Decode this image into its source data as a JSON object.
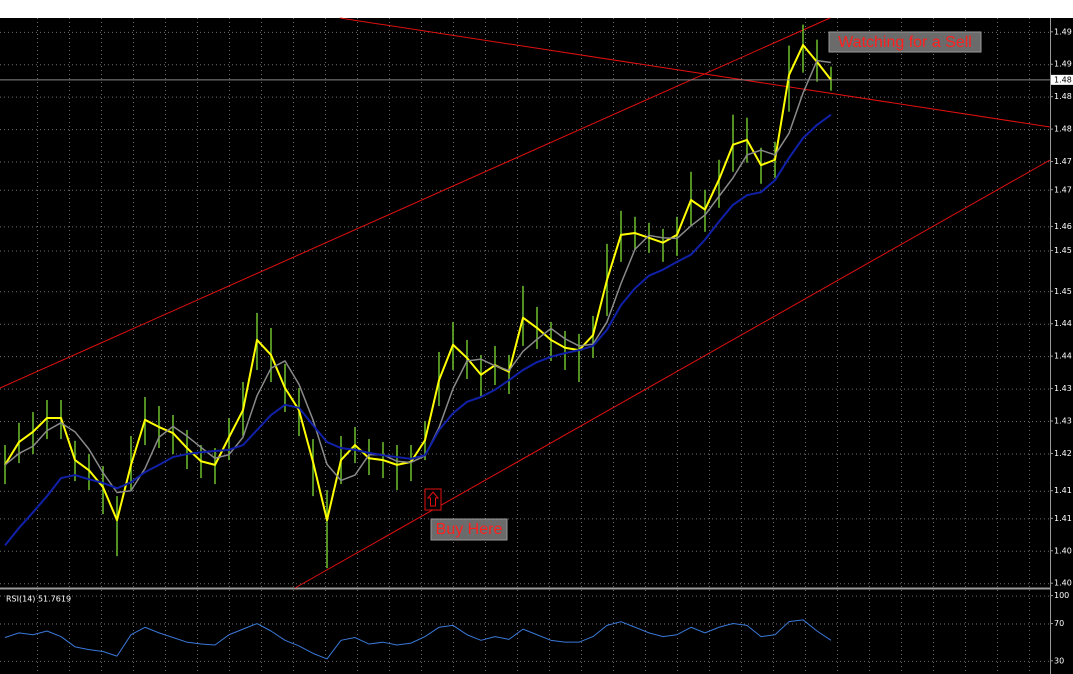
{
  "chart_data": [
    {
      "type": "line",
      "ylim": [
        1.3987,
        1.4936
      ],
      "yticks": [
        {
          "value": 1.3995,
          "label": "1.40"
        },
        {
          "value": 1.4049,
          "label": "1.40"
        },
        {
          "value": 1.4103,
          "label": "1.41"
        },
        {
          "value": 1.4149,
          "label": "1.41"
        },
        {
          "value": 1.4211,
          "label": "1.42"
        },
        {
          "value": 1.4265,
          "label": "1.43"
        },
        {
          "value": 1.4319,
          "label": "1.43"
        },
        {
          "value": 1.4373,
          "label": "1.44"
        },
        {
          "value": 1.4427,
          "label": "1.44"
        },
        {
          "value": 1.4481,
          "label": "1.45"
        },
        {
          "value": 1.4549,
          "label": "1.45"
        },
        {
          "value": 1.4589,
          "label": "1.46"
        },
        {
          "value": 1.465,
          "label": "1.47"
        },
        {
          "value": 1.4697,
          "label": "1.47"
        },
        {
          "value": 1.4751,
          "label": "1.48"
        },
        {
          "value": 1.4805,
          "label": "1.48"
        },
        {
          "value": 1.4859,
          "label": "1.49"
        },
        {
          "value": 1.4913,
          "label": "1.49"
        }
      ],
      "grid": true,
      "bar_color": "#6cc02c",
      "high": [
        1.4225,
        1.4262,
        1.428,
        1.43,
        1.43,
        1.4232,
        1.421,
        1.419,
        1.414,
        1.424,
        1.4305,
        1.429,
        1.4275,
        1.425,
        1.4225,
        1.422,
        1.427,
        1.433,
        1.4445,
        1.442,
        1.436,
        1.432,
        1.4235,
        1.415,
        1.424,
        1.4255,
        1.4235,
        1.423,
        1.4225,
        1.4225,
        1.4265,
        1.438,
        1.443,
        1.44,
        1.4375,
        1.439,
        1.4375,
        1.449,
        1.4455,
        1.443,
        1.4415,
        1.441,
        1.444,
        1.456,
        1.4615,
        1.4605,
        1.4595,
        1.4585,
        1.4605,
        1.468,
        1.465,
        1.47,
        1.4775,
        1.477,
        1.472,
        1.473,
        1.489,
        1.4925,
        1.49,
        1.4855
      ],
      "low": [
        1.416,
        1.4195,
        1.421,
        1.4235,
        1.4235,
        1.4165,
        1.415,
        1.411,
        1.404,
        1.415,
        1.4225,
        1.422,
        1.421,
        1.4185,
        1.417,
        1.416,
        1.42,
        1.424,
        1.435,
        1.433,
        1.428,
        1.424,
        1.414,
        1.402,
        1.416,
        1.4195,
        1.4175,
        1.417,
        1.415,
        1.4165,
        1.42,
        1.429,
        1.435,
        1.4335,
        1.4305,
        1.4325,
        1.431,
        1.439,
        1.4385,
        1.4365,
        1.435,
        1.433,
        1.437,
        1.444,
        1.453,
        1.455,
        1.4545,
        1.453,
        1.454,
        1.459,
        1.458,
        1.462,
        1.468,
        1.4695,
        1.466,
        1.467,
        1.478,
        1.4845,
        1.483,
        1.4815
      ],
      "series": [
        {
          "color": "#ffff00",
          "values": [
            1.4192,
            1.423,
            1.4247,
            1.427,
            1.427,
            1.42,
            1.4183,
            1.4155,
            1.41,
            1.4192,
            1.4267,
            1.4255,
            1.4245,
            1.422,
            1.4198,
            1.4192,
            1.4238,
            1.4283,
            1.44,
            1.4375,
            1.432,
            1.4283,
            1.4197,
            1.41,
            1.42,
            1.4225,
            1.4203,
            1.42,
            1.4192,
            1.4197,
            1.4233,
            1.4333,
            1.4392,
            1.437,
            1.4342,
            1.4358,
            1.4347,
            1.4437,
            1.442,
            1.44,
            1.4387,
            1.4383,
            1.4408,
            1.45,
            1.4575,
            1.4578,
            1.457,
            1.4562,
            1.4575,
            1.4633,
            1.4617,
            1.4667,
            1.4725,
            1.4733,
            1.4691,
            1.47,
            1.4841,
            1.4891,
            1.4863,
            1.4833
          ]
        },
        {
          "color": "#8a8a8a",
          "values": [
            1.4192,
            1.4211,
            1.4223,
            1.4249,
            1.4262,
            1.4247,
            1.4218,
            1.4179,
            1.4146,
            1.4149,
            1.4186,
            1.4238,
            1.4256,
            1.424,
            1.4221,
            1.4203,
            1.4209,
            1.4238,
            1.4307,
            1.4353,
            1.4365,
            1.4326,
            1.4267,
            1.4193,
            1.4166,
            1.4175,
            1.4209,
            1.4209,
            1.4198,
            1.4196,
            1.4207,
            1.4254,
            1.4319,
            1.4365,
            1.4368,
            1.4357,
            1.4349,
            1.4381,
            1.4401,
            1.4419,
            1.4402,
            1.439,
            1.4393,
            1.443,
            1.4494,
            1.4551,
            1.4574,
            1.457,
            1.4569,
            1.459,
            1.4608,
            1.4639,
            1.467,
            1.4708,
            1.4716,
            1.4708,
            1.4744,
            1.4811,
            1.4865,
            1.4862
          ]
        },
        {
          "color": "#1020a8",
          "values": [
            1.4058,
            1.4087,
            1.4113,
            1.414,
            1.417,
            1.4175,
            1.4168,
            1.4162,
            1.4153,
            1.4163,
            1.418,
            1.4192,
            1.4205,
            1.421,
            1.4213,
            1.4215,
            1.4217,
            1.4225,
            1.425,
            1.4275,
            1.4292,
            1.4287,
            1.4258,
            1.423,
            1.422,
            1.4217,
            1.4212,
            1.4208,
            1.4205,
            1.4202,
            1.4208,
            1.425,
            1.4278,
            1.4297,
            1.4305,
            1.4317,
            1.4333,
            1.435,
            1.4363,
            1.4372,
            1.4378,
            1.4383,
            1.439,
            1.4417,
            1.4458,
            1.4486,
            1.4507,
            1.4517,
            1.453,
            1.4542,
            1.4567,
            1.4597,
            1.4625,
            1.4641,
            1.4646,
            1.4666,
            1.4703,
            1.4736,
            1.4758,
            1.4775
          ]
        }
      ],
      "current_price": {
        "value": 1.4833,
        "label": "1.48"
      },
      "annotations": [
        {
          "text": "Watching for a Sell"
        },
        {
          "text": "Buy Here"
        }
      ]
    },
    {
      "type": "line",
      "title": "RSI(14) 51.7619",
      "ylim": [
        18,
        106
      ],
      "yticks": [
        30,
        70,
        100
      ],
      "grid": true,
      "series": [
        {
          "color": "#3a78d8",
          "values": [
            55,
            60,
            58,
            62,
            56,
            45,
            42,
            40,
            35,
            58,
            66,
            60,
            55,
            50,
            48,
            47,
            58,
            64,
            70,
            62,
            52,
            46,
            38,
            32,
            52,
            55,
            48,
            50,
            47,
            49,
            56,
            66,
            68,
            58,
            52,
            56,
            53,
            64,
            58,
            52,
            50,
            50,
            56,
            68,
            72,
            66,
            60,
            56,
            58,
            66,
            60,
            66,
            70,
            68,
            56,
            58,
            72,
            74,
            62,
            52
          ]
        }
      ]
    }
  ]
}
